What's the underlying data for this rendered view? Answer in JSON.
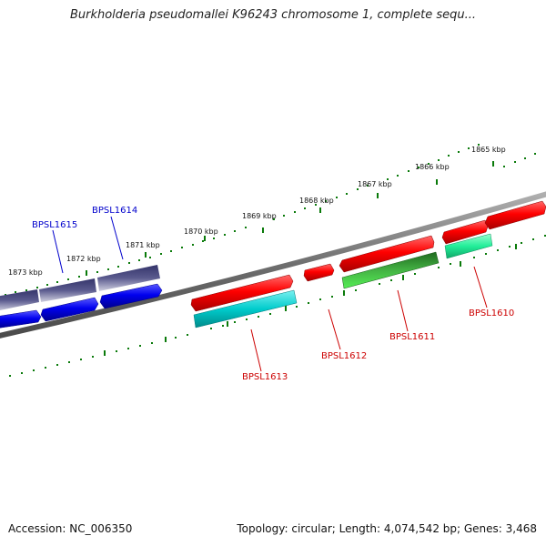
{
  "title": "Burkholderia pseudomallei K96243 chromosome 1, complete sequ...",
  "footer": {
    "accession": "Accession: NC_006350",
    "summary": "Topology: circular; Length: 4,074,542 bp; Genes: 3,468"
  },
  "kbp_ticks": [
    "1865 kbp",
    "1866 kbp",
    "1867 kbp",
    "1868 kbp",
    "1869 kbp",
    "1870 kbp",
    "1871 kbp",
    "1872 kbp",
    "1873 kbp"
  ],
  "genes": [
    {
      "label": "BPSL1615",
      "color": "#0000cc"
    },
    {
      "label": "BPSL1614",
      "color": "#0000cc"
    },
    {
      "label": "BPSL1613",
      "color": "#cc0000"
    },
    {
      "label": "BPSL1612",
      "color": "#cc0000"
    },
    {
      "label": "BPSL1611",
      "color": "#cc0000"
    },
    {
      "label": "BPSL1610",
      "color": "#cc0000"
    }
  ],
  "colors": {
    "backbone": "#777777",
    "tick": "#0a7a0a",
    "cds_forward": "#ff0000",
    "cds_reverse": "#0000ee",
    "rna_cyan": "#00cccc",
    "green_feature": "#33aa33",
    "mint_feature": "#22ee99",
    "slate_feature": "#44447a"
  }
}
